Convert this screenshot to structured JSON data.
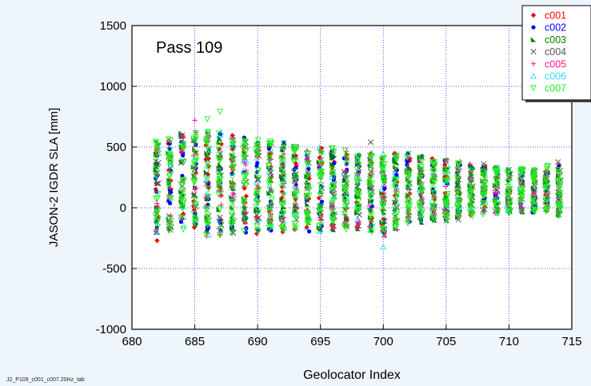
{
  "chart_data": {
    "type": "scatter",
    "annotation": "Pass 109",
    "ylabel": "JASON-2 IGDR SLA [mm]",
    "xlabel": "Geolocator Index",
    "footer": "J2_P109_c001_c007.20Hz_tab",
    "xlim": [
      680,
      715
    ],
    "ylim": [
      -1000,
      1500
    ],
    "x_ticks": [
      "680",
      "685",
      "690",
      "695",
      "700",
      "705",
      "710",
      "715"
    ],
    "y_ticks": [
      "1500",
      "1000",
      "500",
      "0",
      "-500",
      "-1000"
    ],
    "grid": true,
    "legend_placement": "top-right",
    "x_range": [
      682,
      714
    ],
    "series": [
      {
        "name": "c001",
        "marker": "diamond",
        "color": "#ff0000"
      },
      {
        "name": "c002",
        "marker": "circle",
        "color": "#0000ff"
      },
      {
        "name": "c003",
        "marker": "triangle",
        "color": "#008000"
      },
      {
        "name": "c004",
        "marker": "x",
        "color": "#555555"
      },
      {
        "name": "c005",
        "marker": "plus",
        "color": "#ff1493"
      },
      {
        "name": "c006",
        "marker": "triangle-open",
        "color": "#33ddff"
      },
      {
        "name": "c007",
        "marker": "triangle-down-open",
        "color": "#22ee22"
      }
    ],
    "envelope": {
      "x": [
        682,
        684,
        686,
        688,
        690,
        692,
        694,
        696,
        698,
        700,
        702,
        704,
        706,
        708,
        710,
        712,
        714
      ],
      "upper": [
        600,
        680,
        730,
        660,
        620,
        590,
        560,
        540,
        520,
        500,
        490,
        450,
        420,
        380,
        360,
        350,
        420
      ],
      "lower": [
        -280,
        -250,
        -330,
        -300,
        -300,
        -280,
        -270,
        -260,
        -240,
        -320,
        -180,
        -160,
        -140,
        -80,
        -60,
        -60,
        -100
      ]
    },
    "notable_points": [
      {
        "series": "c001",
        "x": 682,
        "y": -270
      },
      {
        "series": "c007",
        "x": 686,
        "y": 730
      },
      {
        "series": "c007",
        "x": 687,
        "y": 790
      },
      {
        "series": "c005",
        "x": 685,
        "y": 720
      },
      {
        "series": "c006",
        "x": 700,
        "y": -320
      },
      {
        "series": "c004",
        "x": 699,
        "y": 540
      },
      {
        "series": "c004",
        "x": 708,
        "y": 360
      }
    ]
  }
}
